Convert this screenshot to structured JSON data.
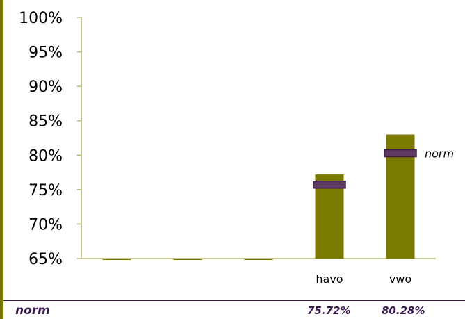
{
  "colors": {
    "bar": "#7a7a00",
    "axis": "#b5b57a",
    "norm_marker_fill": "#5e3a63",
    "norm_marker_stroke": "#3c1a4e",
    "table_text": "#3c1a4e",
    "left_stripe": "#7a7a00"
  },
  "chart_data": {
    "type": "bar",
    "categories": [
      "",
      "",
      "",
      "havo",
      "vwo"
    ],
    "series": [
      {
        "values": [
          null,
          null,
          null,
          77.2,
          83.0
        ]
      }
    ],
    "norm": {
      "label": "norm",
      "values": [
        null,
        null,
        null,
        75.72,
        80.28
      ]
    },
    "ylim": [
      65,
      100
    ],
    "yticks": [
      "100%",
      "95%",
      "90%",
      "85%",
      "80%",
      "75%",
      "70%",
      "65%"
    ],
    "grid": false,
    "annotation": "norm"
  },
  "table": {
    "row_label": "norm",
    "values": [
      "",
      "",
      "",
      "75.72%",
      "80.28%"
    ]
  }
}
